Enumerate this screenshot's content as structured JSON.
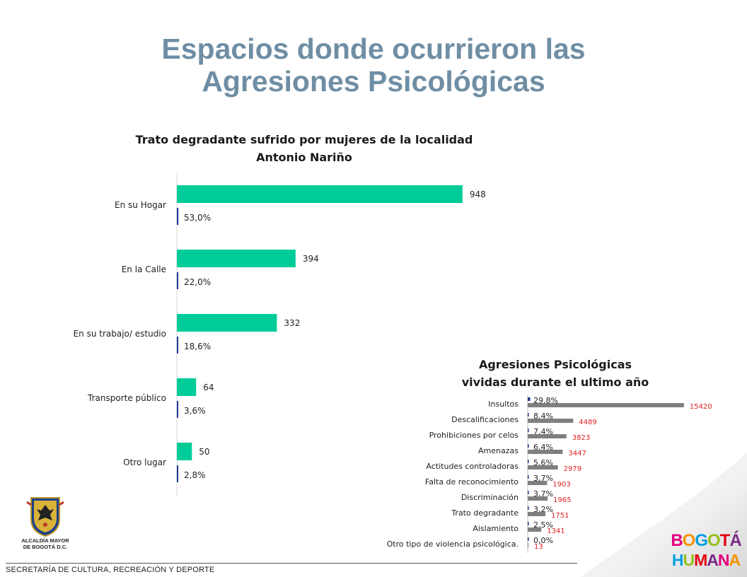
{
  "slide": {
    "title_line1": "Espacios donde ocurrieron las",
    "title_line2": "Agresiones Psicológicas",
    "footer": "SECRETARÍA DE CULTURA, RECREACIÓN Y DEPORTE"
  },
  "logos": {
    "left_line1": "ALCALDÍA MAYOR",
    "left_line2": "DE BOGOTÁ D.C.",
    "right_line1": "BOGOTÁ",
    "right_line2": "HUMANA"
  },
  "colors": {
    "title": "#6f8ea4",
    "bar_count": "#00cc99",
    "bar_pct": "#1f3a93",
    "bar_gray": "#7f7f7f",
    "count_label": "#e02020"
  },
  "chart_data": [
    {
      "type": "bar",
      "orientation": "horizontal",
      "title_line1": "Trato degradante sufrido por mujeres de la localidad",
      "title_line2": "Antonio Nariño",
      "categories": [
        "En su Hogar",
        "En la Calle",
        "En su trabajo/ estudio",
        "Transporte público",
        "Otro lugar"
      ],
      "series": [
        {
          "values": [
            948,
            394,
            332,
            64,
            50
          ],
          "labels": [
            "948",
            "394",
            "332",
            "64",
            "50"
          ]
        },
        {
          "values": [
            53.0,
            22.0,
            18.6,
            3.6,
            2.8
          ],
          "labels": [
            "53,0%",
            "22,0%",
            "18,6%",
            "3,6%",
            "2,8%"
          ]
        }
      ],
      "xlim": [
        0,
        1000
      ],
      "grid": false
    },
    {
      "type": "bar",
      "orientation": "horizontal",
      "title_line1": "Agresiones Psicológicas",
      "title_line2": "vividas durante el ultimo año",
      "categories": [
        "Insultos",
        "Descalificaciones",
        "Prohibiciones por celos",
        "Amenazas",
        "Actitudes controladoras",
        "Falta de reconocimiento",
        "Discriminación",
        "Trato degradante",
        "Aislamiento",
        "Otro tipo de violencia psicológica."
      ],
      "series": [
        {
          "values": [
            29.8,
            8.4,
            7.4,
            6.4,
            5.6,
            3.7,
            3.7,
            3.2,
            2.5,
            0.0
          ],
          "labels": [
            "29,8%",
            "8,4%",
            "7,4%",
            "6,4%",
            "5,6%",
            "3,7%",
            "3,7%",
            "3,2%",
            "2,5%",
            "0,0%"
          ]
        },
        {
          "values": [
            15420,
            4489,
            3823,
            3447,
            2979,
            1903,
            1965,
            1751,
            1341,
            13
          ],
          "labels": [
            "15420",
            "4489",
            "3823",
            "3447",
            "2979",
            "1903",
            "1965",
            "1751",
            "1341",
            "13"
          ]
        }
      ],
      "grid": false
    }
  ]
}
